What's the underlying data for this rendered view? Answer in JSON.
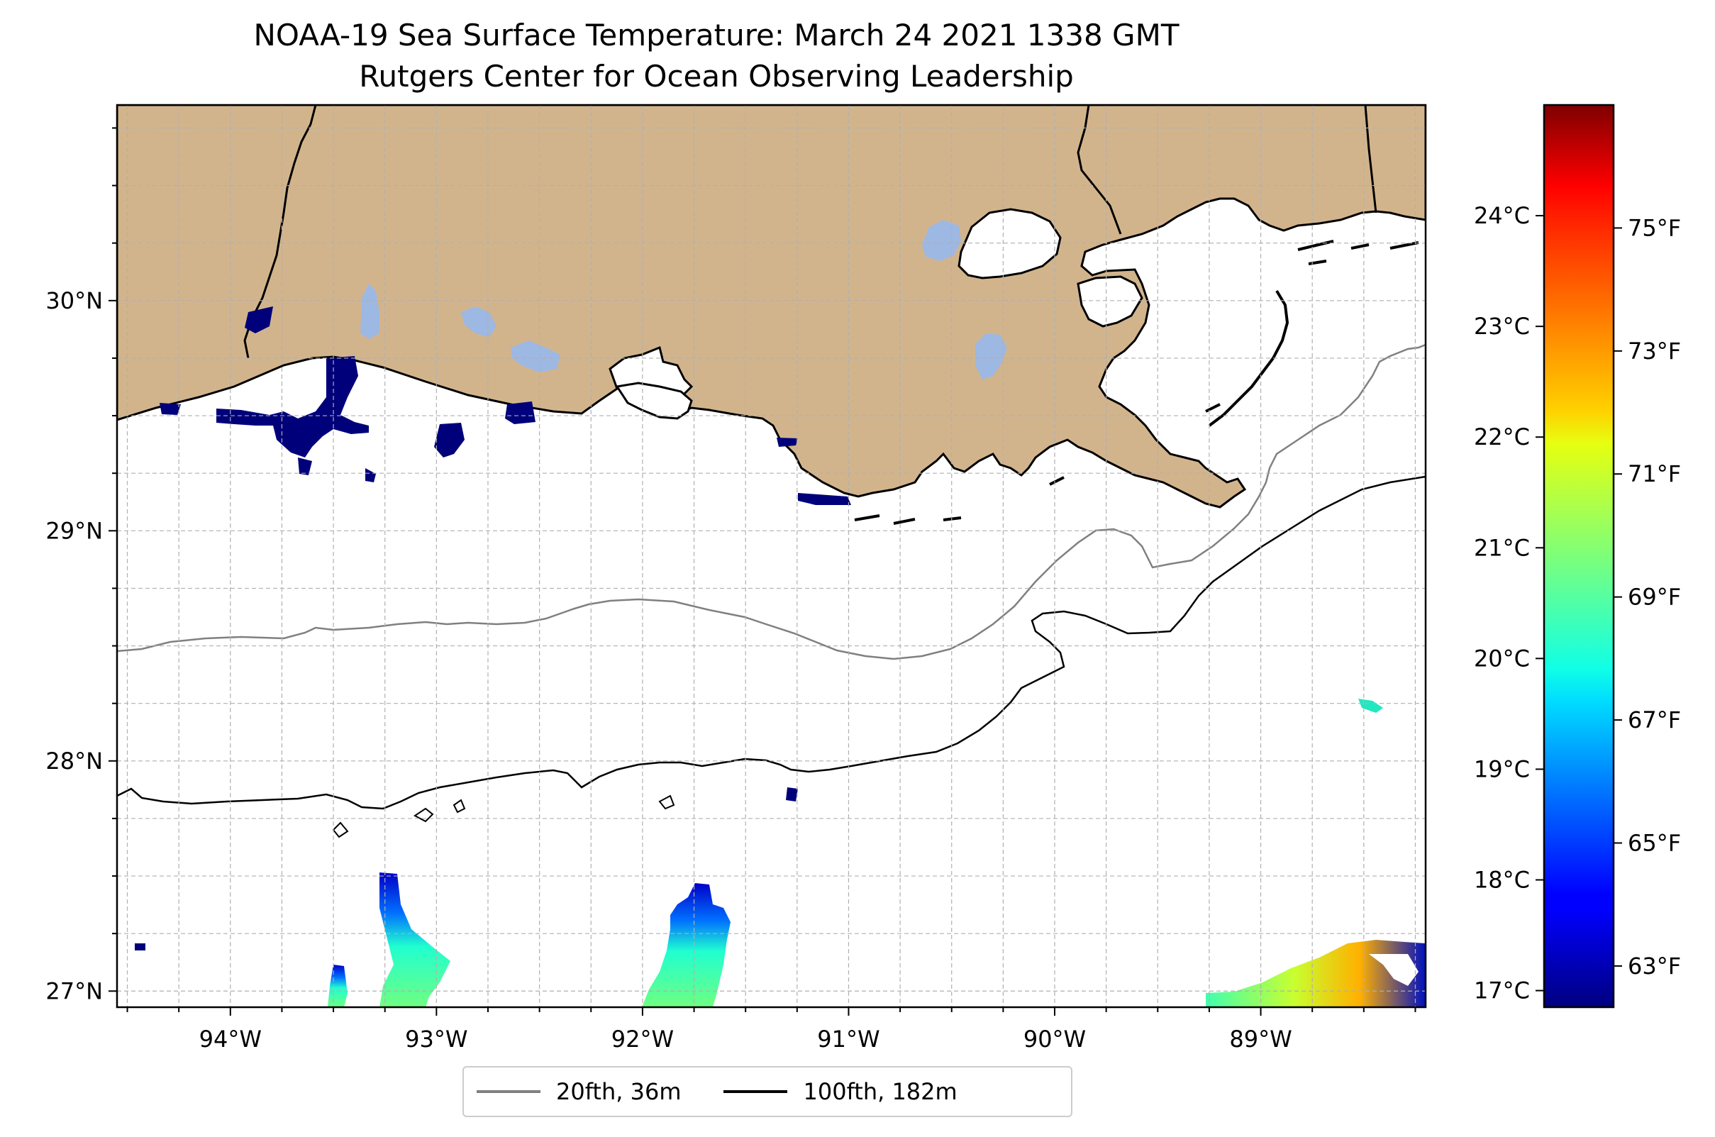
{
  "title": {
    "line1": "NOAA-19 Sea Surface Temperature: March 24 2021 1338 GMT",
    "line2": "Rutgers Center for Ocean Observing Leadership"
  },
  "map": {
    "extent": {
      "lon_min": -94.55,
      "lon_max": -88.2,
      "lat_min": 26.93,
      "lat_max": 30.85
    },
    "lon_ticks": [
      {
        "value": -94,
        "label": "94°W"
      },
      {
        "value": -93,
        "label": "93°W"
      },
      {
        "value": -92,
        "label": "92°W"
      },
      {
        "value": -91,
        "label": "91°W"
      },
      {
        "value": -90,
        "label": "90°W"
      },
      {
        "value": -89,
        "label": "89°W"
      }
    ],
    "lat_ticks": [
      {
        "value": 30,
        "label": "30°N"
      },
      {
        "value": 29,
        "label": "29°N"
      },
      {
        "value": 28,
        "label": "28°N"
      },
      {
        "value": 27,
        "label": "27°N"
      }
    ],
    "minor_gridlines": "every 0.25 degree, dashed gray",
    "colors": {
      "land": "#d2b48c",
      "ocean": "#ffffff",
      "lakes": "#9db8e2",
      "isobath_20fth": "#808080",
      "isobath_100fth": "#000000"
    }
  },
  "colorbar": {
    "colormap": "jet",
    "celsius_ticks": [
      {
        "value": 17,
        "label": "17°C"
      },
      {
        "value": 18,
        "label": "18°C"
      },
      {
        "value": 19,
        "label": "19°C"
      },
      {
        "value": 20,
        "label": "20°C"
      },
      {
        "value": 21,
        "label": "21°C"
      },
      {
        "value": 22,
        "label": "22°C"
      },
      {
        "value": 23,
        "label": "23°C"
      },
      {
        "value": 24,
        "label": "24°C"
      }
    ],
    "fahrenheit_ticks": [
      {
        "value": 63,
        "label": "63°F"
      },
      {
        "value": 65,
        "label": "65°F"
      },
      {
        "value": 67,
        "label": "67°F"
      },
      {
        "value": 69,
        "label": "69°F"
      },
      {
        "value": 71,
        "label": "71°F"
      },
      {
        "value": 73,
        "label": "73°F"
      },
      {
        "value": 75,
        "label": "75°F"
      }
    ],
    "range_celsius": [
      16.85,
      25.0
    ]
  },
  "legend": {
    "items": [
      {
        "label": "20fth, 36m",
        "color": "#808080"
      },
      {
        "label": "100fth, 182m",
        "color": "#000000"
      }
    ]
  }
}
